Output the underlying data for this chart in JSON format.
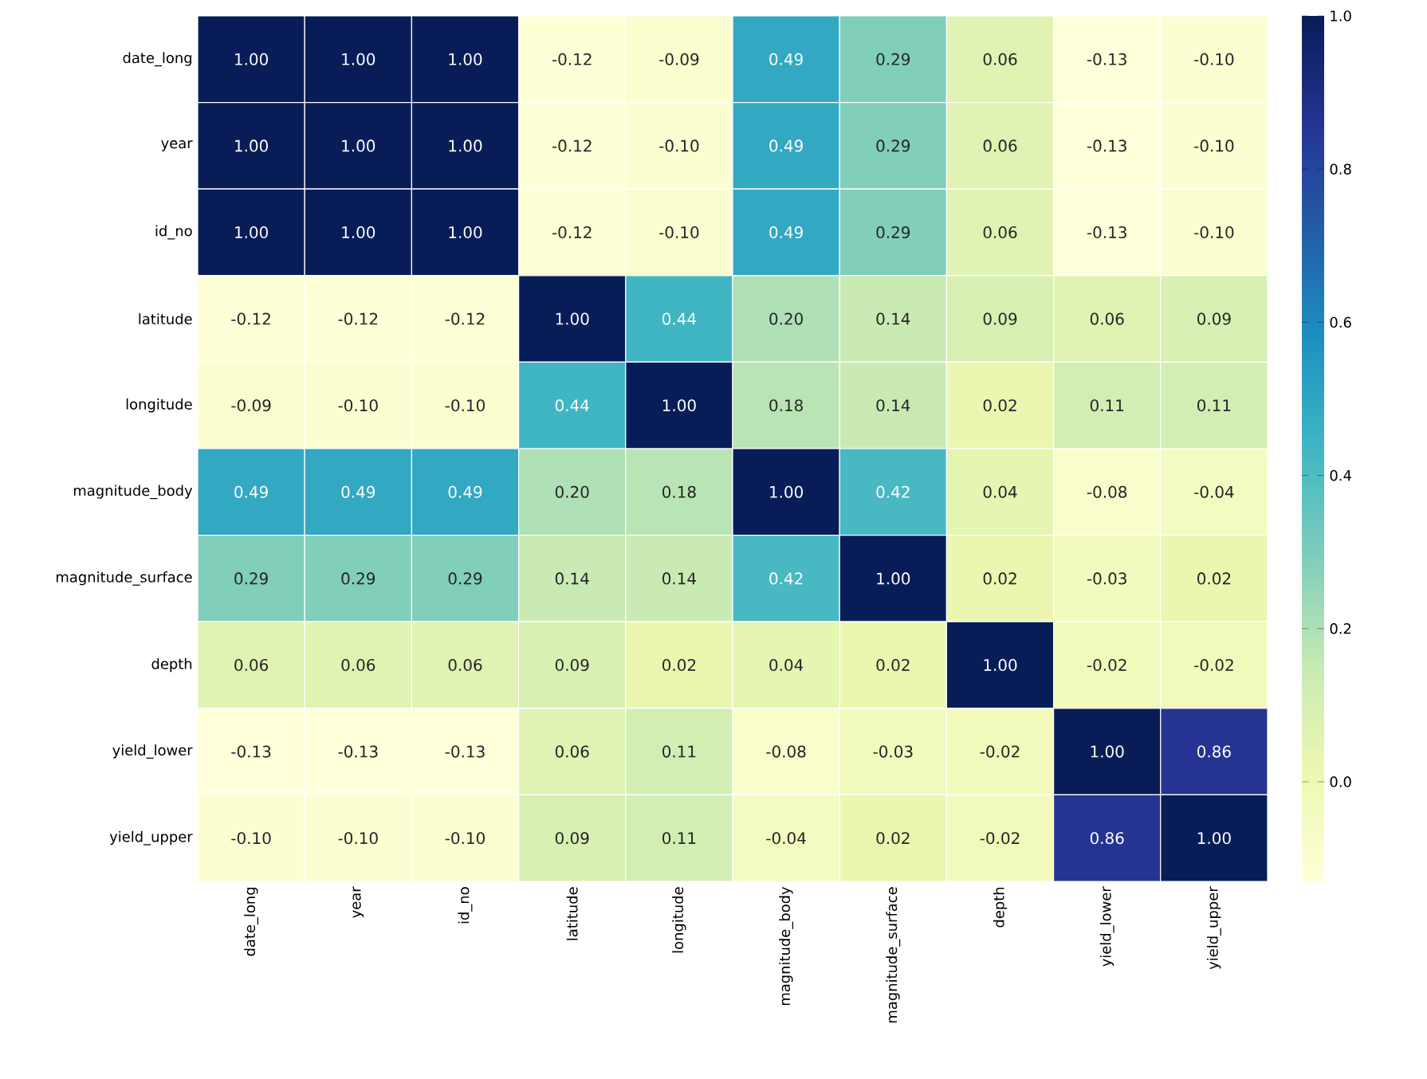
{
  "chart_data": {
    "type": "heatmap",
    "categories": [
      "date_long",
      "year",
      "id_no",
      "latitude",
      "longitude",
      "magnitude_body",
      "magnitude_surface",
      "depth",
      "yield_lower",
      "yield_upper"
    ],
    "y_categories": [
      "date_long",
      "year",
      "id_no",
      "latitude",
      "longitude",
      "magnitude_body",
      "magnitude_surface",
      "depth",
      "yield_lower",
      "yield_upper"
    ],
    "cells": [
      [
        1.0,
        1.0,
        1.0,
        -0.12,
        -0.09,
        0.49,
        0.29,
        0.06,
        -0.13,
        -0.1
      ],
      [
        1.0,
        1.0,
        1.0,
        -0.12,
        -0.1,
        0.49,
        0.29,
        0.06,
        -0.13,
        -0.1
      ],
      [
        1.0,
        1.0,
        1.0,
        -0.12,
        -0.1,
        0.49,
        0.29,
        0.06,
        -0.13,
        -0.1
      ],
      [
        -0.12,
        -0.12,
        -0.12,
        1.0,
        0.44,
        0.2,
        0.14,
        0.09,
        0.06,
        0.09
      ],
      [
        -0.09,
        -0.1,
        -0.1,
        0.44,
        1.0,
        0.18,
        0.14,
        0.02,
        0.11,
        0.11
      ],
      [
        0.49,
        0.49,
        0.49,
        0.2,
        0.18,
        1.0,
        0.42,
        0.04,
        -0.08,
        -0.04
      ],
      [
        0.29,
        0.29,
        0.29,
        0.14,
        0.14,
        0.42,
        1.0,
        0.02,
        -0.03,
        0.02
      ],
      [
        0.06,
        0.06,
        0.06,
        0.09,
        0.02,
        0.04,
        0.02,
        1.0,
        -0.02,
        -0.02
      ],
      [
        -0.13,
        -0.13,
        -0.13,
        0.06,
        0.11,
        -0.08,
        -0.03,
        -0.02,
        1.0,
        0.86
      ],
      [
        -0.1,
        -0.1,
        -0.1,
        0.09,
        0.11,
        -0.04,
        0.02,
        -0.02,
        0.86,
        1.0
      ]
    ],
    "cell_labels": [
      [
        "1.00",
        "1.00",
        "1.00",
        "-0.12",
        "-0.09",
        "0.49",
        "0.29",
        "0.06",
        "-0.13",
        "-0.10"
      ],
      [
        "1.00",
        "1.00",
        "1.00",
        "-0.12",
        "-0.10",
        "0.49",
        "0.29",
        "0.06",
        "-0.13",
        "-0.10"
      ],
      [
        "1.00",
        "1.00",
        "1.00",
        "-0.12",
        "-0.10",
        "0.49",
        "0.29",
        "0.06",
        "-0.13",
        "-0.10"
      ],
      [
        "-0.12",
        "-0.12",
        "-0.12",
        "1.00",
        "0.44",
        "0.20",
        "0.14",
        "0.09",
        "0.06",
        "0.09"
      ],
      [
        "-0.09",
        "-0.10",
        "-0.10",
        "0.44",
        "1.00",
        "0.18",
        "0.14",
        "0.02",
        "0.11",
        "0.11"
      ],
      [
        "0.49",
        "0.49",
        "0.49",
        "0.20",
        "0.18",
        "1.00",
        "0.42",
        "0.04",
        "-0.08",
        "-0.04"
      ],
      [
        "0.29",
        "0.29",
        "0.29",
        "0.14",
        "0.14",
        "0.42",
        "1.00",
        "0.02",
        "-0.03",
        "0.02"
      ],
      [
        "0.06",
        "0.06",
        "0.06",
        "0.09",
        "0.02",
        "0.04",
        "0.02",
        "1.00",
        "-0.02",
        "-0.02"
      ],
      [
        "-0.13",
        "-0.13",
        "-0.13",
        "0.06",
        "0.11",
        "-0.08",
        "-0.03",
        "-0.02",
        "1.00",
        "0.86"
      ],
      [
        "-0.10",
        "-0.10",
        "-0.10",
        "0.09",
        "0.11",
        "-0.04",
        "0.02",
        "-0.02",
        "0.86",
        "1.00"
      ]
    ],
    "clim": [
      -0.13,
      1.0
    ],
    "cticks": [
      {
        "value": 0.0,
        "label": "0.0"
      },
      {
        "value": 0.2,
        "label": "0.2"
      },
      {
        "value": 0.4,
        "label": "0.4"
      },
      {
        "value": 0.6,
        "label": "0.6"
      },
      {
        "value": 0.8,
        "label": "0.8"
      },
      {
        "value": 1.0,
        "label": "1.0"
      }
    ]
  }
}
